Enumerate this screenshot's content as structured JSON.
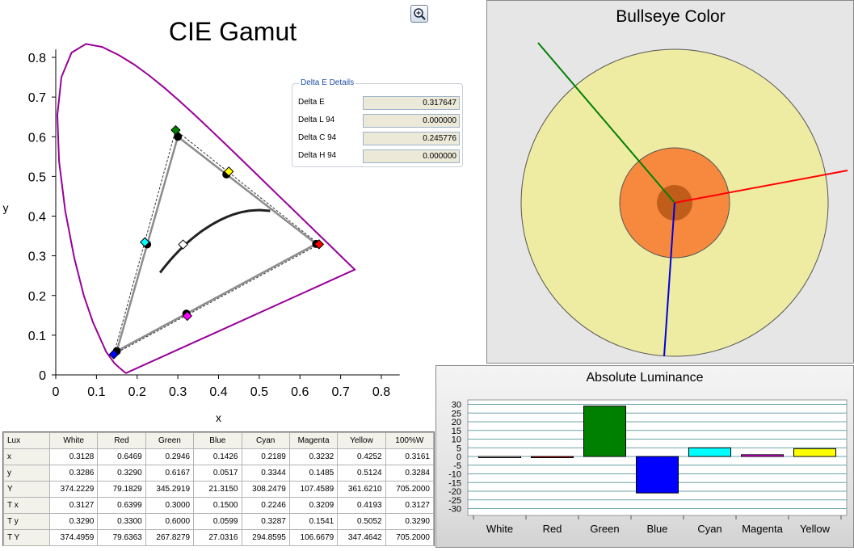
{
  "cie": {
    "title": "CIE Gamut",
    "xlabel": "x",
    "ylabel": "y"
  },
  "delta_e": {
    "legend": "Delta E Details",
    "rows": [
      {
        "label": "Delta E",
        "value": "0.317647"
      },
      {
        "label": "Delta L 94",
        "value": "0.000000"
      },
      {
        "label": "Delta C 94",
        "value": "0.245776"
      },
      {
        "label": "Delta H 94",
        "value": "0.000000"
      }
    ]
  },
  "bullseye": {
    "title": "Bullseye Color",
    "colors": {
      "outer": "#eeeba2",
      "middle": "#f7893e",
      "inner": "#c05d1a",
      "red": "#ff0000",
      "green": "#008000",
      "blue": "#0000dd"
    }
  },
  "luminance": {
    "title": "Absolute Luminance"
  },
  "table": {
    "headers": [
      "Lux",
      "White",
      "Red",
      "Green",
      "Blue",
      "Cyan",
      "Magenta",
      "Yellow",
      "100%W"
    ],
    "rows": [
      {
        "label": "x",
        "values": [
          "0.3128",
          "0.6469",
          "0.2946",
          "0.1426",
          "0.2189",
          "0.3232",
          "0.4252",
          "0.3161"
        ]
      },
      {
        "label": "y",
        "values": [
          "0.3286",
          "0.3290",
          "0.6167",
          "0.0517",
          "0.3344",
          "0.1485",
          "0.5124",
          "0.3284"
        ]
      },
      {
        "label": "Y",
        "values": [
          "374.2229",
          "79.1829",
          "345.2919",
          "21.3150",
          "308.2479",
          "107.4589",
          "361.6210",
          "705.2000"
        ]
      },
      {
        "label": "T x",
        "values": [
          "0.3127",
          "0.6399",
          "0.3000",
          "0.1500",
          "0.2246",
          "0.3209",
          "0.4193",
          "0.3127"
        ]
      },
      {
        "label": "T y",
        "values": [
          "0.3290",
          "0.3300",
          "0.6000",
          "0.0599",
          "0.3287",
          "0.1541",
          "0.5052",
          "0.3290"
        ]
      },
      {
        "label": "T Y",
        "values": [
          "374.4959",
          "79.6363",
          "267.8279",
          "27.0316",
          "294.8595",
          "106.6679",
          "347.4642",
          "705.2000"
        ]
      }
    ]
  },
  "chart_data": [
    {
      "type": "scatter",
      "title": "CIE Gamut",
      "xlabel": "x",
      "ylabel": "y",
      "xlim": [
        0,
        0.8
      ],
      "ylim": [
        0,
        0.8
      ],
      "xticks": [
        "0",
        "0.1",
        "0.2",
        "0.3",
        "0.4",
        "0.5",
        "0.6",
        "0.7",
        "0.8"
      ],
      "yticks": [
        "0",
        "0.1",
        "0.2",
        "0.3",
        "0.4",
        "0.5",
        "0.6",
        "0.7",
        "0.8"
      ],
      "measured": [
        {
          "name": "White",
          "x": 0.3128,
          "y": 0.3286,
          "color": "#ffffff"
        },
        {
          "name": "Red",
          "x": 0.6469,
          "y": 0.329,
          "color": "#ff0000"
        },
        {
          "name": "Green",
          "x": 0.2946,
          "y": 0.6167,
          "color": "#008000"
        },
        {
          "name": "Blue",
          "x": 0.1426,
          "y": 0.0517,
          "color": "#0000ff"
        },
        {
          "name": "Cyan",
          "x": 0.2189,
          "y": 0.3344,
          "color": "#00ffff"
        },
        {
          "name": "Magenta",
          "x": 0.3232,
          "y": 0.1485,
          "color": "#ff00ff"
        },
        {
          "name": "Yellow",
          "x": 0.4252,
          "y": 0.5124,
          "color": "#ffff00"
        }
      ],
      "targets": [
        {
          "name": "Red",
          "x": 0.6399,
          "y": 0.33
        },
        {
          "name": "Green",
          "x": 0.3,
          "y": 0.6
        },
        {
          "name": "Blue",
          "x": 0.15,
          "y": 0.0599
        },
        {
          "name": "Cyan",
          "x": 0.2246,
          "y": 0.3287
        },
        {
          "name": "Magenta",
          "x": 0.3209,
          "y": 0.1541
        },
        {
          "name": "Yellow",
          "x": 0.4193,
          "y": 0.5052
        }
      ],
      "locus_color": "#990099"
    },
    {
      "type": "bar",
      "title": "Absolute Luminance",
      "categories": [
        "White",
        "Red",
        "Green",
        "Blue",
        "Cyan",
        "Magenta",
        "Yellow"
      ],
      "values": [
        -0.3,
        -0.5,
        29,
        -21,
        5,
        1,
        4.5
      ],
      "colors": [
        "#ffffff",
        "#ff0000",
        "#008000",
        "#0000ff",
        "#00ffff",
        "#ff00ff",
        "#ffff00"
      ],
      "ylim": [
        -30,
        30
      ],
      "yticks": [
        "30",
        "25",
        "20",
        "15",
        "10",
        "5",
        "0",
        "-5",
        "-10",
        "-15",
        "-20",
        "-25",
        "-30"
      ]
    }
  ]
}
